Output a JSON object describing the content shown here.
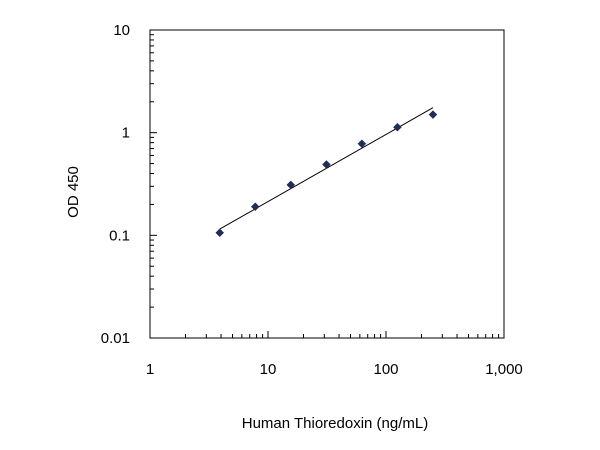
{
  "chart_data": {
    "type": "scatter",
    "xscale": "log",
    "yscale": "log",
    "xlabel": "Human Thioredoxin (ng/mL)",
    "ylabel": "OD 450",
    "xlim": [
      1,
      1000
    ],
    "ylim": [
      0.01,
      10
    ],
    "xticks": [
      {
        "value": 1,
        "label": "1"
      },
      {
        "value": 10,
        "label": "10"
      },
      {
        "value": 100,
        "label": "100"
      },
      {
        "value": 1000,
        "label": "1,000"
      }
    ],
    "yticks": [
      {
        "value": 0.01,
        "label": "0.01"
      },
      {
        "value": 0.1,
        "label": "0.1"
      },
      {
        "value": 1,
        "label": "1"
      },
      {
        "value": 10,
        "label": "10"
      }
    ],
    "points": [
      {
        "x": 3.9,
        "y": 0.106
      },
      {
        "x": 7.8,
        "y": 0.19
      },
      {
        "x": 15.6,
        "y": 0.31
      },
      {
        "x": 31.25,
        "y": 0.49
      },
      {
        "x": 62.5,
        "y": 0.78
      },
      {
        "x": 125,
        "y": 1.13
      },
      {
        "x": 250,
        "y": 1.5
      }
    ],
    "fit_line": [
      {
        "x": 3.9,
        "y": 0.115
      },
      {
        "x": 250,
        "y": 1.75
      }
    ],
    "grid": false,
    "marker_color": "#1f2d5a",
    "line_color": "#000000"
  }
}
